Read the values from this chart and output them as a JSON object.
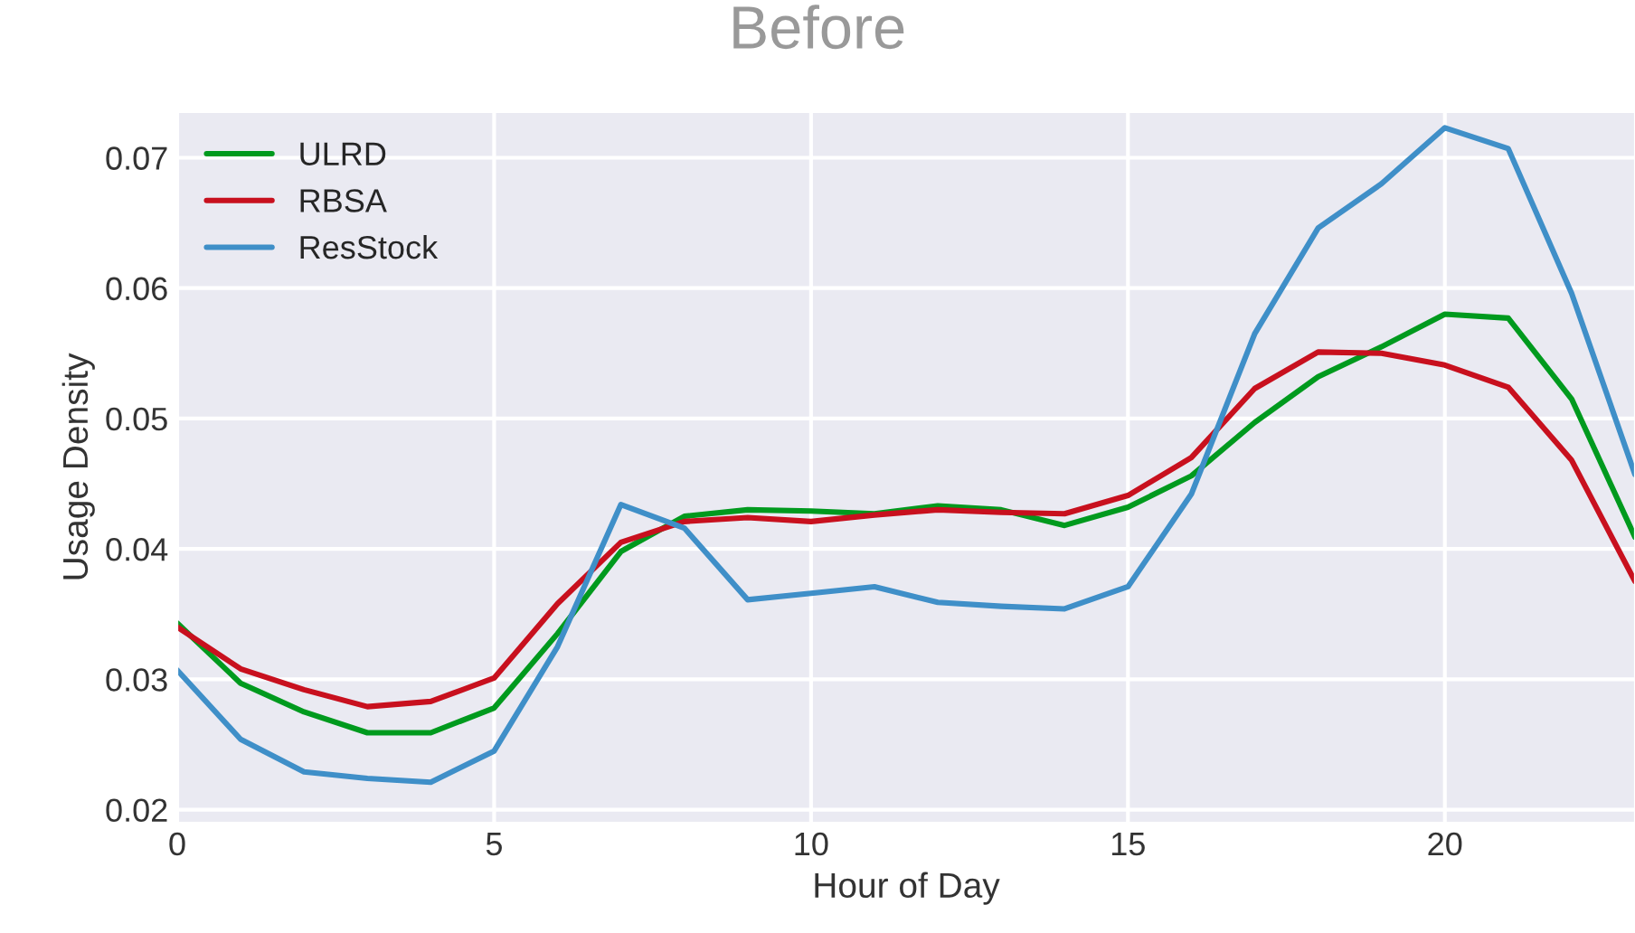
{
  "chart_data": {
    "type": "line",
    "title": "Before",
    "xlabel": "Hour of Day",
    "ylabel": "Usage Density",
    "x": [
      0,
      1,
      2,
      3,
      4,
      5,
      6,
      7,
      8,
      9,
      10,
      11,
      12,
      13,
      14,
      15,
      16,
      17,
      18,
      19,
      20,
      21,
      22,
      23
    ],
    "series": [
      {
        "name": "ULRD",
        "color": "#009a1e",
        "values": [
          0.0343,
          0.0297,
          0.0275,
          0.0259,
          0.0259,
          0.0278,
          0.0335,
          0.0398,
          0.0425,
          0.043,
          0.0429,
          0.0427,
          0.0433,
          0.043,
          0.0418,
          0.0432,
          0.0456,
          0.0497,
          0.0532,
          0.0555,
          0.058,
          0.0577,
          0.0515,
          0.0409
        ]
      },
      {
        "name": "RBSA",
        "color": "#c8101e",
        "values": [
          0.034,
          0.0308,
          0.0292,
          0.0279,
          0.0283,
          0.0301,
          0.0358,
          0.0405,
          0.0421,
          0.0424,
          0.0421,
          0.0426,
          0.043,
          0.0428,
          0.0427,
          0.0441,
          0.047,
          0.0523,
          0.0551,
          0.055,
          0.0541,
          0.0524,
          0.0468,
          0.0375
        ]
      },
      {
        "name": "ResStock",
        "color": "#3f8fc8",
        "values": [
          0.0307,
          0.0254,
          0.0229,
          0.0224,
          0.0221,
          0.0245,
          0.0325,
          0.0434,
          0.0416,
          0.0361,
          0.0366,
          0.0371,
          0.0359,
          0.0356,
          0.0354,
          0.0371,
          0.0442,
          0.0565,
          0.0646,
          0.068,
          0.0723,
          0.0707,
          0.0596,
          0.0457
        ]
      }
    ],
    "xlim": [
      0,
      23
    ],
    "xticks": [
      0,
      5,
      10,
      15,
      20
    ],
    "ylim": [
      0.019,
      0.0735
    ],
    "yticks": [
      0.02,
      0.03,
      0.04,
      0.05,
      0.06,
      0.07
    ],
    "grid": true,
    "legend": "top left",
    "marker": "none",
    "line_style": "solid"
  }
}
